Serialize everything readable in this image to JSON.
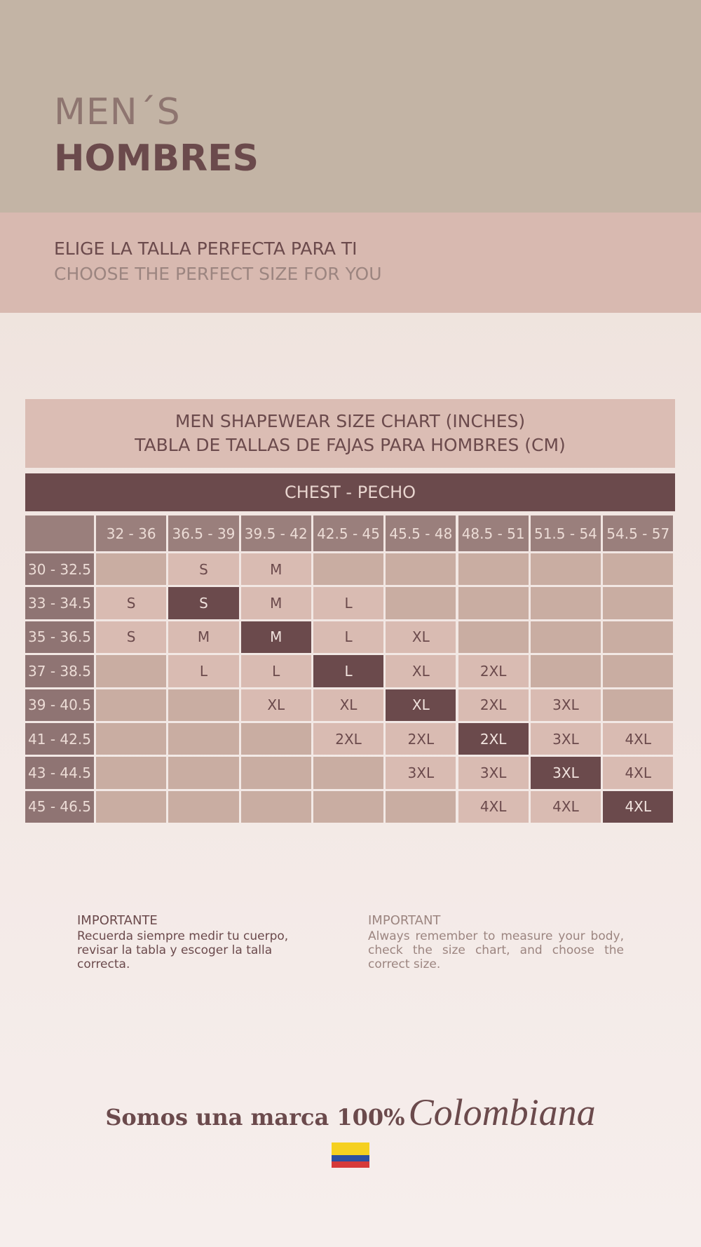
{
  "header": {
    "title_line1": "MEN´S",
    "title_line2": "HOMBRES"
  },
  "subtitle": {
    "line1": "ELIGE LA TALLA PERFECTA PARA TI",
    "line2": "CHOOSE THE PERFECT SIZE FOR YOU"
  },
  "table": {
    "title_line1": "MEN SHAPEWEAR SIZE CHART (INCHES)",
    "title_line2": "TABLA DE TALLAS DE FAJAS PARA HOMBRES (CM)",
    "column_group": "CHEST - PECHO",
    "columns": [
      "32 - 36",
      "36.5 - 39",
      "39.5 - 42",
      "42.5 - 45",
      "45.5 - 48",
      "48.5 - 51",
      "51.5 - 54",
      "54.5 - 57"
    ],
    "row_labels": [
      "30 - 32.5",
      "33 - 34.5",
      "35 - 36.5",
      "37 - 38.5",
      "39 - 40.5",
      "41 - 42.5",
      "43 - 44.5",
      "45 - 46.5"
    ],
    "rows": [
      [
        null,
        "S",
        "M",
        null,
        null,
        null,
        null,
        null
      ],
      [
        "S",
        "S",
        "M",
        "L",
        null,
        null,
        null,
        null
      ],
      [
        "S",
        "M",
        "M",
        "L",
        "XL",
        null,
        null,
        null
      ],
      [
        null,
        "L",
        "L",
        "L",
        "XL",
        "2XL",
        null,
        null
      ],
      [
        null,
        null,
        "XL",
        "XL",
        "XL",
        "2XL",
        "3XL",
        null
      ],
      [
        null,
        null,
        null,
        "2XL",
        "2XL",
        "2XL",
        "3XL",
        "4XL"
      ],
      [
        null,
        null,
        null,
        null,
        "3XL",
        "3XL",
        "3XL",
        "4XL"
      ],
      [
        null,
        null,
        null,
        null,
        null,
        "4XL",
        "4XL",
        "4XL"
      ]
    ],
    "highlight_col": [
      null,
      1,
      2,
      3,
      4,
      5,
      6,
      7
    ]
  },
  "notes": [
    {
      "title": "IMPORTANTE",
      "text": "Recuerda siempre medir tu cuerpo, revisar la tabla y escoger la talla correcta."
    },
    {
      "title": "IMPORTANT",
      "text": "Always remember to measure your body, check the size chart, and choose the correct size."
    }
  ],
  "footer": {
    "text": "Somos una marca 100%",
    "script": "Colombiana"
  }
}
